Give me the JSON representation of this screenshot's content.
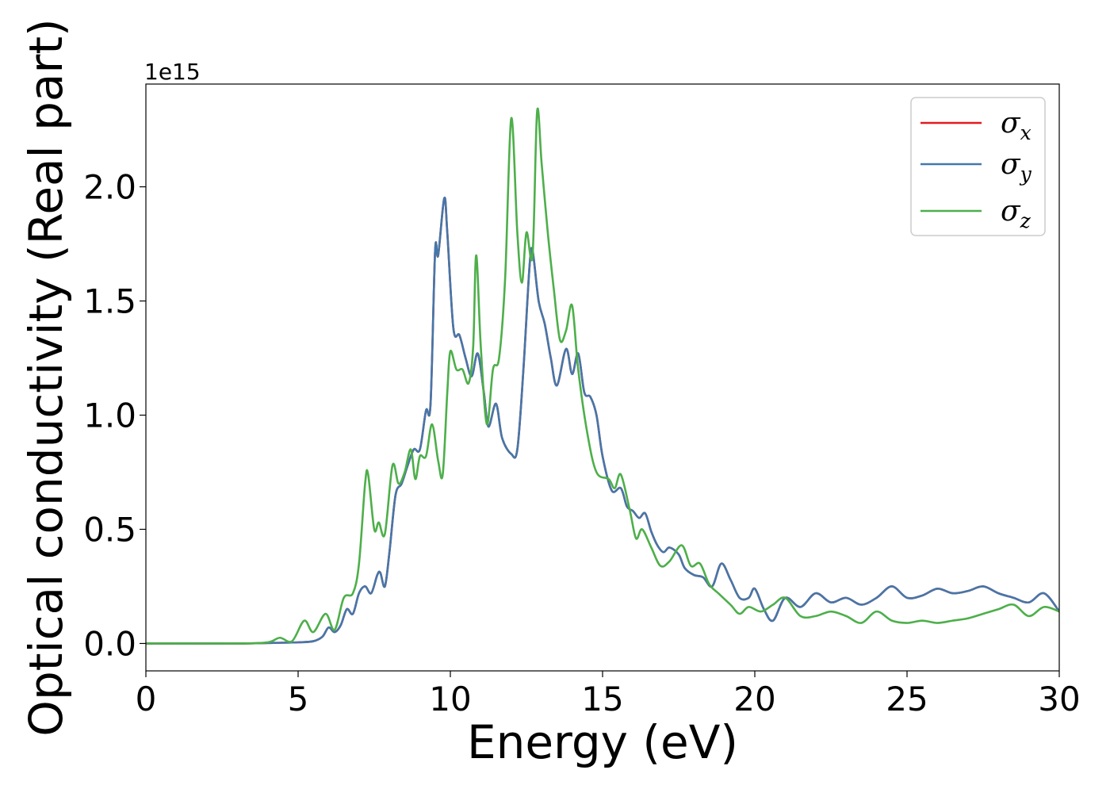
{
  "chart_data": {
    "type": "line",
    "xlabel": "Energy (eV)",
    "ylabel": "Optical conductivity (Real part)",
    "y_offset_label": "1e15",
    "xlim": [
      0,
      30
    ],
    "ylim": [
      -0.12,
      2.45
    ],
    "x_ticks": [
      0,
      5,
      10,
      15,
      20,
      25,
      30
    ],
    "x_tick_labels": [
      "0",
      "5",
      "10",
      "15",
      "20",
      "25",
      "30"
    ],
    "y_ticks": [
      0.0,
      0.5,
      1.0,
      1.5,
      2.0
    ],
    "y_tick_labels": [
      "0.0",
      "0.5",
      "1.0",
      "1.5",
      "2.0"
    ],
    "grid": false,
    "legend_position": "top-right",
    "series": [
      {
        "name": "σx",
        "legend_base": "σ",
        "legend_sub": "x",
        "color": "#e41a1c",
        "ref": "xy"
      },
      {
        "name": "σy",
        "legend_base": "σ",
        "legend_sub": "y",
        "color": "#4477aa",
        "ref": "xy"
      },
      {
        "name": "σz",
        "legend_base": "σ",
        "legend_sub": "z",
        "color": "#4daf4a",
        "ref": "z"
      }
    ],
    "curves": {
      "xy": [
        [
          0,
          0
        ],
        [
          3,
          0
        ],
        [
          4,
          0.002
        ],
        [
          5,
          0.005
        ],
        [
          5.5,
          0.01
        ],
        [
          5.8,
          0.03
        ],
        [
          6.0,
          0.07
        ],
        [
          6.2,
          0.05
        ],
        [
          6.4,
          0.08
        ],
        [
          6.6,
          0.15
        ],
        [
          6.8,
          0.13
        ],
        [
          7.0,
          0.22
        ],
        [
          7.2,
          0.25
        ],
        [
          7.4,
          0.22
        ],
        [
          7.6,
          0.3
        ],
        [
          7.7,
          0.31
        ],
        [
          7.85,
          0.25
        ],
        [
          8.0,
          0.4
        ],
        [
          8.2,
          0.65
        ],
        [
          8.4,
          0.7
        ],
        [
          8.6,
          0.78
        ],
        [
          8.8,
          0.85
        ],
        [
          9.0,
          0.85
        ],
        [
          9.2,
          1.02
        ],
        [
          9.35,
          1.05
        ],
        [
          9.5,
          1.72
        ],
        [
          9.6,
          1.7
        ],
        [
          9.8,
          1.95
        ],
        [
          9.9,
          1.8
        ],
        [
          10.1,
          1.38
        ],
        [
          10.3,
          1.35
        ],
        [
          10.5,
          1.25
        ],
        [
          10.7,
          1.17
        ],
        [
          10.9,
          1.27
        ],
        [
          11.1,
          1.1
        ],
        [
          11.25,
          0.95
        ],
        [
          11.5,
          1.05
        ],
        [
          11.7,
          0.9
        ],
        [
          12.0,
          0.83
        ],
        [
          12.2,
          0.85
        ],
        [
          12.4,
          1.2
        ],
        [
          12.6,
          1.65
        ],
        [
          12.7,
          1.72
        ],
        [
          12.9,
          1.5
        ],
        [
          13.1,
          1.4
        ],
        [
          13.3,
          1.25
        ],
        [
          13.5,
          1.13
        ],
        [
          13.8,
          1.29
        ],
        [
          14.0,
          1.18
        ],
        [
          14.2,
          1.27
        ],
        [
          14.4,
          1.1
        ],
        [
          14.6,
          1.08
        ],
        [
          14.8,
          1.0
        ],
        [
          15.0,
          0.82
        ],
        [
          15.3,
          0.67
        ],
        [
          15.6,
          0.68
        ],
        [
          15.8,
          0.6
        ],
        [
          16.0,
          0.58
        ],
        [
          16.2,
          0.55
        ],
        [
          16.4,
          0.57
        ],
        [
          16.6,
          0.49
        ],
        [
          16.8,
          0.43
        ],
        [
          17.0,
          0.4
        ],
        [
          17.2,
          0.42
        ],
        [
          17.5,
          0.39
        ],
        [
          17.7,
          0.33
        ],
        [
          18.0,
          0.3
        ],
        [
          18.3,
          0.29
        ],
        [
          18.6,
          0.25
        ],
        [
          18.9,
          0.35
        ],
        [
          19.2,
          0.28
        ],
        [
          19.5,
          0.2
        ],
        [
          19.8,
          0.2
        ],
        [
          20.0,
          0.24
        ],
        [
          20.3,
          0.15
        ],
        [
          20.6,
          0.1
        ],
        [
          21.0,
          0.2
        ],
        [
          21.5,
          0.16
        ],
        [
          22.0,
          0.22
        ],
        [
          22.5,
          0.18
        ],
        [
          23.0,
          0.2
        ],
        [
          23.5,
          0.17
        ],
        [
          24.0,
          0.2
        ],
        [
          24.5,
          0.25
        ],
        [
          25.0,
          0.2
        ],
        [
          25.5,
          0.21
        ],
        [
          26.0,
          0.24
        ],
        [
          26.5,
          0.22
        ],
        [
          27.0,
          0.23
        ],
        [
          27.5,
          0.25
        ],
        [
          28.0,
          0.22
        ],
        [
          28.5,
          0.2
        ],
        [
          29.0,
          0.18
        ],
        [
          29.5,
          0.22
        ],
        [
          30.0,
          0.14
        ]
      ],
      "z": [
        [
          0,
          0
        ],
        [
          3,
          0
        ],
        [
          4,
          0.005
        ],
        [
          4.4,
          0.025
        ],
        [
          4.8,
          0.01
        ],
        [
          5.2,
          0.1
        ],
        [
          5.5,
          0.05
        ],
        [
          5.9,
          0.13
        ],
        [
          6.2,
          0.06
        ],
        [
          6.5,
          0.2
        ],
        [
          6.8,
          0.22
        ],
        [
          7.0,
          0.35
        ],
        [
          7.2,
          0.7
        ],
        [
          7.3,
          0.74
        ],
        [
          7.5,
          0.5
        ],
        [
          7.65,
          0.53
        ],
        [
          7.85,
          0.48
        ],
        [
          8.1,
          0.78
        ],
        [
          8.3,
          0.7
        ],
        [
          8.5,
          0.75
        ],
        [
          8.7,
          0.85
        ],
        [
          8.85,
          0.72
        ],
        [
          9.0,
          0.82
        ],
        [
          9.2,
          0.82
        ],
        [
          9.4,
          0.96
        ],
        [
          9.6,
          0.8
        ],
        [
          9.75,
          0.74
        ],
        [
          9.9,
          1.1
        ],
        [
          10.0,
          1.28
        ],
        [
          10.2,
          1.2
        ],
        [
          10.4,
          1.2
        ],
        [
          10.6,
          1.14
        ],
        [
          10.75,
          1.3
        ],
        [
          10.85,
          1.7
        ],
        [
          11.0,
          1.3
        ],
        [
          11.2,
          0.96
        ],
        [
          11.4,
          1.2
        ],
        [
          11.6,
          1.25
        ],
        [
          11.8,
          1.6
        ],
        [
          12.0,
          2.3
        ],
        [
          12.2,
          1.8
        ],
        [
          12.35,
          1.58
        ],
        [
          12.5,
          1.8
        ],
        [
          12.7,
          1.7
        ],
        [
          12.85,
          2.33
        ],
        [
          13.0,
          2.1
        ],
        [
          13.2,
          1.8
        ],
        [
          13.4,
          1.55
        ],
        [
          13.6,
          1.33
        ],
        [
          13.8,
          1.37
        ],
        [
          14.0,
          1.48
        ],
        [
          14.2,
          1.2
        ],
        [
          14.5,
          0.92
        ],
        [
          14.8,
          0.75
        ],
        [
          15.2,
          0.72
        ],
        [
          15.4,
          0.68
        ],
        [
          15.6,
          0.74
        ],
        [
          15.9,
          0.58
        ],
        [
          16.1,
          0.46
        ],
        [
          16.3,
          0.5
        ],
        [
          16.6,
          0.42
        ],
        [
          16.9,
          0.34
        ],
        [
          17.2,
          0.36
        ],
        [
          17.6,
          0.43
        ],
        [
          17.9,
          0.34
        ],
        [
          18.2,
          0.35
        ],
        [
          18.5,
          0.26
        ],
        [
          18.8,
          0.22
        ],
        [
          19.2,
          0.17
        ],
        [
          19.5,
          0.13
        ],
        [
          19.8,
          0.16
        ],
        [
          20.2,
          0.14
        ],
        [
          20.6,
          0.17
        ],
        [
          21.0,
          0.2
        ],
        [
          21.5,
          0.12
        ],
        [
          22.0,
          0.12
        ],
        [
          22.5,
          0.14
        ],
        [
          23.0,
          0.12
        ],
        [
          23.5,
          0.09
        ],
        [
          24.0,
          0.14
        ],
        [
          24.5,
          0.1
        ],
        [
          25.0,
          0.09
        ],
        [
          25.5,
          0.1
        ],
        [
          26.0,
          0.09
        ],
        [
          26.5,
          0.1
        ],
        [
          27.0,
          0.11
        ],
        [
          27.5,
          0.13
        ],
        [
          28.0,
          0.15
        ],
        [
          28.5,
          0.17
        ],
        [
          29.0,
          0.12
        ],
        [
          29.5,
          0.16
        ],
        [
          30.0,
          0.14
        ]
      ]
    }
  }
}
